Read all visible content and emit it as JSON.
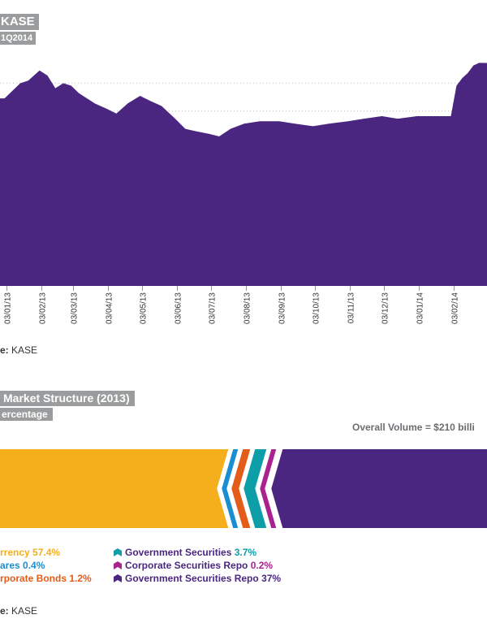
{
  "chart1": {
    "title": "KASE",
    "subtitle": "1Q2014",
    "source_prefix": "e:",
    "source_name": "KASE",
    "colors": {
      "area": "#4b2681",
      "grid": "#b9b9b9",
      "tag": "#9a9c9e"
    },
    "chart_data": {
      "type": "area",
      "x": [
        "03/01/13",
        "03/02/13",
        "03/03/13",
        "03/04/13",
        "03/05/13",
        "03/06/13",
        "03/07/13",
        "03/08/13",
        "03/09/13",
        "03/10/13",
        "03/11/13",
        "03/12/13",
        "03/01/14",
        "03/02/14"
      ],
      "series_profile": [
        [
          "2013-01-01",
          0.74
        ],
        [
          "2013-01-08",
          0.77
        ],
        [
          "2013-01-15",
          0.8
        ],
        [
          "2013-01-22",
          0.81
        ],
        [
          "2013-02-01",
          0.85
        ],
        [
          "2013-02-08",
          0.83
        ],
        [
          "2013-02-15",
          0.78
        ],
        [
          "2013-02-22",
          0.8
        ],
        [
          "2013-03-01",
          0.79
        ],
        [
          "2013-03-08",
          0.76
        ],
        [
          "2013-03-15",
          0.74
        ],
        [
          "2013-03-22",
          0.72
        ],
        [
          "2013-04-01",
          0.7
        ],
        [
          "2013-04-10",
          0.68
        ],
        [
          "2013-04-20",
          0.72
        ],
        [
          "2013-05-01",
          0.75
        ],
        [
          "2013-05-10",
          0.73
        ],
        [
          "2013-05-20",
          0.71
        ],
        [
          "2013-06-01",
          0.66
        ],
        [
          "2013-06-10",
          0.62
        ],
        [
          "2013-06-20",
          0.61
        ],
        [
          "2013-07-01",
          0.6
        ],
        [
          "2013-07-10",
          0.59
        ],
        [
          "2013-07-20",
          0.62
        ],
        [
          "2013-08-01",
          0.64
        ],
        [
          "2013-08-15",
          0.65
        ],
        [
          "2013-09-01",
          0.65
        ],
        [
          "2013-09-15",
          0.64
        ],
        [
          "2013-10-01",
          0.63
        ],
        [
          "2013-10-15",
          0.64
        ],
        [
          "2013-11-01",
          0.65
        ],
        [
          "2013-11-15",
          0.66
        ],
        [
          "2013-12-01",
          0.67
        ],
        [
          "2013-12-15",
          0.66
        ],
        [
          "2014-01-01",
          0.67
        ],
        [
          "2014-01-15",
          0.67
        ],
        [
          "2014-01-31",
          0.67
        ],
        [
          "2014-02-05",
          0.79
        ],
        [
          "2014-02-10",
          0.82
        ],
        [
          "2014-02-15",
          0.84
        ],
        [
          "2014-02-20",
          0.87
        ],
        [
          "2014-02-25",
          0.88
        ]
      ],
      "ylim": [
        0,
        1
      ],
      "grid": "dotted horizontal",
      "legend": "none"
    }
  },
  "chart2": {
    "title": "Market Structure (2013)",
    "subtitle": "ercentage",
    "overall": "Overall Volume = $210 billi",
    "source_prefix": "e:",
    "source_name": "KASE",
    "chart_data": {
      "type": "bar",
      "orientation": "horizontal-stacked",
      "unit": "%",
      "series": [
        {
          "name": "rrency",
          "value": 57.4,
          "value_label": "57.4%",
          "color": "#f5ae1c"
        },
        {
          "name": "ares",
          "value": 0.4,
          "value_label": "0.4%",
          "color": "#1a8ed1"
        },
        {
          "name": "rporate Bonds",
          "value": 1.2,
          "value_label": "1.2%",
          "color": "#e35c1a"
        },
        {
          "name": "Government Securities",
          "value": 3.7,
          "value_label": "3.7%",
          "color": "#0d9ea8"
        },
        {
          "name": "Corporate Securities Repo",
          "value": 0.2,
          "value_label": "0.2%",
          "color": "#a8238f"
        },
        {
          "name": "Government Securities Repo",
          "value": 37,
          "value_label": "37%",
          "color": "#4b2681"
        }
      ]
    }
  }
}
